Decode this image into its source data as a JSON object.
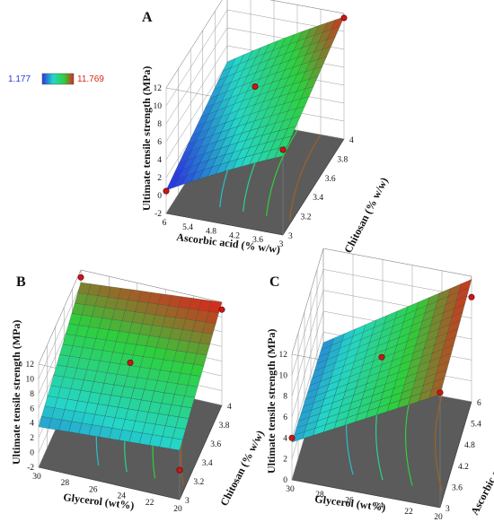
{
  "legend": {
    "min": "1.177",
    "max": "11.769",
    "colors": [
      "#2a39e0",
      "#25d6c8",
      "#2ecf3c",
      "#d62a1c"
    ]
  },
  "chart_data": [
    {
      "type": "surface3d",
      "panel_label": "A",
      "zlabel": "Ultimate tensile strength (MPa)",
      "xlabel": "Ascorbic acid (% w/w)",
      "ylabel": "Chitosan (% w/w)",
      "x_ticks": [
        "6",
        "5.4",
        "4.8",
        "4.2",
        "3.6",
        "3"
      ],
      "y_ticks": [
        "3",
        "3.2",
        "3.4",
        "3.6",
        "3.8",
        "4"
      ],
      "z_ticks": [
        "-2",
        "0",
        "2",
        "4",
        "6",
        "8",
        "10",
        "12"
      ],
      "xlim": [
        3,
        6
      ],
      "ylim": [
        3,
        4
      ],
      "zlim": [
        -2,
        12
      ],
      "design_points": [
        {
          "x": 6,
          "y": 3,
          "z": 0.5
        },
        {
          "x": 4.5,
          "y": 3.5,
          "z": 8.0
        },
        {
          "x": 3,
          "y": 3,
          "z": 7.5
        },
        {
          "x": 3,
          "y": 4,
          "z": 11.5
        }
      ]
    },
    {
      "type": "surface3d",
      "panel_label": "B",
      "zlabel": "Ultimate tensile strength (MPa)",
      "xlabel": "Glycerol (wt%)",
      "ylabel": "Chitosan (% w/w)",
      "x_ticks": [
        "30",
        "28",
        "26",
        "24",
        "22",
        "20"
      ],
      "y_ticks": [
        "3",
        "3.2",
        "3.4",
        "3.6",
        "3.8",
        "4"
      ],
      "z_ticks": [
        "-2",
        "0",
        "2",
        "4",
        "6",
        "8",
        "10",
        "12"
      ],
      "xlim": [
        20,
        30
      ],
      "ylim": [
        3,
        4
      ],
      "zlim": [
        -2,
        12
      ],
      "design_points": [
        {
          "x": 30,
          "y": 4,
          "z": 11.0
        },
        {
          "x": 25,
          "y": 3.5,
          "z": 8.0
        },
        {
          "x": 20,
          "y": 4,
          "z": 11.0
        },
        {
          "x": 20,
          "y": 3,
          "z": 2.0
        }
      ]
    },
    {
      "type": "surface3d",
      "panel_label": "C",
      "zlabel": "Ultimate tensile strength (MPa)",
      "xlabel": "Glycerol (wt%)",
      "ylabel": "Ascorbic acid (% w/w)",
      "x_ticks": [
        "30",
        "28",
        "26",
        "24",
        "22",
        "20"
      ],
      "y_ticks": [
        "3",
        "3.6",
        "4.2",
        "4.8",
        "5.4",
        "6"
      ],
      "z_ticks": [
        "0",
        "2",
        "4",
        "6",
        "8",
        "10",
        "12"
      ],
      "xlim": [
        20,
        30
      ],
      "ylim": [
        3,
        6
      ],
      "zlim": [
        0,
        12
      ],
      "design_points": [
        {
          "x": 30,
          "y": 3,
          "z": 4.0
        },
        {
          "x": 25,
          "y": 4.5,
          "z": 8.0
        },
        {
          "x": 20,
          "y": 3,
          "z": 11.0
        },
        {
          "x": 20,
          "y": 6,
          "z": 10.0
        }
      ]
    }
  ]
}
